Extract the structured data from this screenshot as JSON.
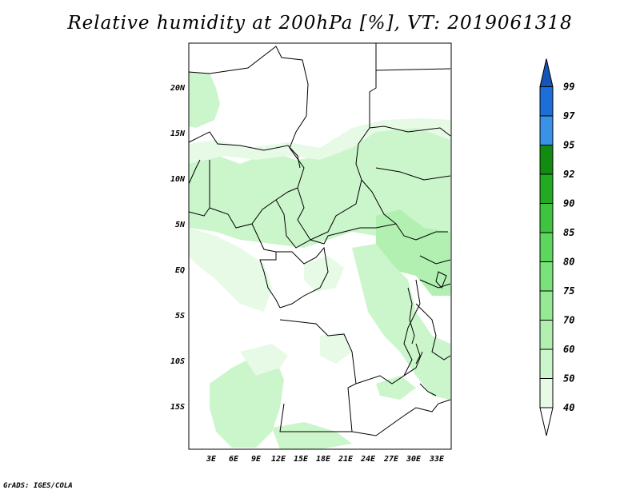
{
  "title": "Relative humidity at 200hPa [%], VT: 2019061318",
  "credit": "GrADS: IGES/COLA",
  "map": {
    "lat_labels": [
      "20N",
      "15N",
      "10N",
      "5N",
      "EQ",
      "5S",
      "10S",
      "15S"
    ],
    "lon_labels": [
      "3E",
      "6E",
      "9E",
      "12E",
      "15E",
      "18E",
      "21E",
      "24E",
      "27E",
      "30E",
      "33E"
    ]
  },
  "legend": {
    "levels": [
      "40",
      "50",
      "60",
      "70",
      "75",
      "80",
      "85",
      "90",
      "92",
      "95",
      "97",
      "99"
    ],
    "colors": [
      "#ffffff",
      "#e6fae6",
      "#cbf5cb",
      "#b2f0b2",
      "#96ea96",
      "#7ae27a",
      "#5cd65c",
      "#3fc43f",
      "#22aa22",
      "#118c11",
      "#3a92e6",
      "#1c6fd6",
      "#1455b8"
    ]
  }
}
